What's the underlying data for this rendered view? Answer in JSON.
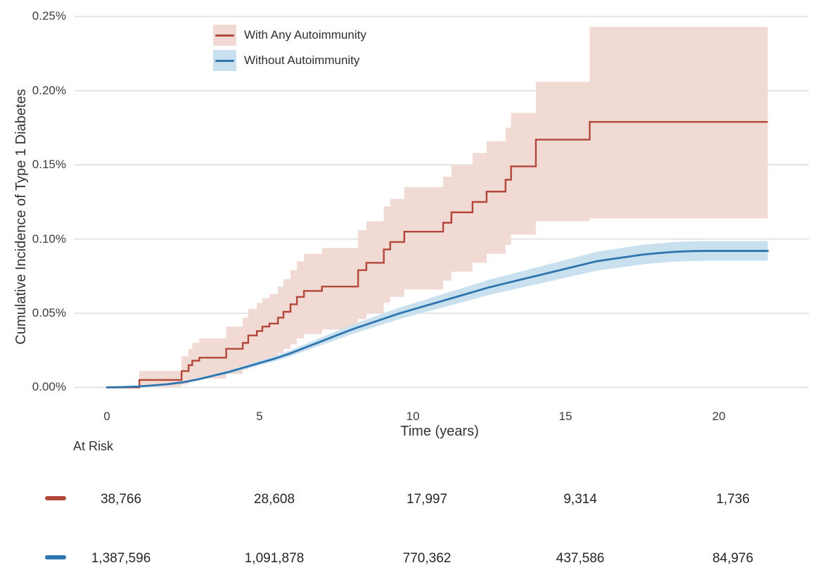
{
  "colors": {
    "red_line": "#b24639",
    "red_band": "#f1d9d4",
    "blue_line": "#2e74ae",
    "blue_band": "#c9e0ef",
    "grid": "#e4e4e4",
    "text": "#3a3a3a"
  },
  "chart_data": {
    "type": "line",
    "subtype": "cumulative-incidence-with-confidence-bands",
    "title": "",
    "xlabel": "Time (years)",
    "ylabel": "Cumulative Incidence of Type 1 Diabetes",
    "xlim": [
      0,
      21.6
    ],
    "ylim_percent": [
      0,
      0.25
    ],
    "grid": "horizontal-only",
    "x_ticks": [
      0,
      5,
      10,
      15,
      20
    ],
    "y_tick_labels": [
      "0.00%",
      "0.05%",
      "0.10%",
      "0.15%",
      "0.20%",
      "0.25%"
    ],
    "y_gridlines_percent": [
      0,
      0.05,
      0.1,
      0.15,
      0.2,
      0.25
    ],
    "legend": {
      "position": "top-left-inside",
      "entries": [
        {
          "label": "With Any Autoimmunity",
          "line_color": "#b24639",
          "band_color": "#f1d9d4"
        },
        {
          "label": "Without Autoimmunity",
          "line_color": "#2e74ae",
          "band_color": "#c9e0ef"
        }
      ]
    },
    "series": [
      {
        "name": "With Any Autoimmunity",
        "style": "step",
        "color": "#b24639",
        "band_color": "#f1d9d4",
        "t": [
          0,
          1.06,
          2.44,
          2.67,
          2.79,
          3.02,
          3.9,
          4.44,
          4.62,
          4.9,
          5.08,
          5.31,
          5.59,
          5.77,
          6.0,
          6.21,
          6.44,
          7.03,
          8.21,
          8.48,
          9.05,
          9.26,
          9.72,
          10.99,
          11.26,
          11.95,
          12.41,
          13.03,
          13.21,
          14.02,
          15.78,
          21.6
        ],
        "v_percent": [
          0,
          0.005,
          0.011,
          0.015,
          0.018,
          0.02,
          0.026,
          0.03,
          0.035,
          0.038,
          0.041,
          0.043,
          0.047,
          0.051,
          0.056,
          0.061,
          0.065,
          0.068,
          0.079,
          0.084,
          0.093,
          0.098,
          0.105,
          0.111,
          0.118,
          0.125,
          0.132,
          0.14,
          0.149,
          0.167,
          0.179,
          0.179
        ],
        "band_t": [
          1.06,
          2.44,
          2.67,
          2.79,
          3.02,
          3.9,
          4.44,
          4.62,
          4.9,
          5.08,
          5.31,
          5.59,
          5.77,
          6.0,
          6.21,
          6.44,
          7.03,
          8.21,
          8.48,
          9.05,
          9.26,
          9.72,
          10.99,
          11.26,
          11.95,
          12.41,
          13.03,
          13.21,
          14.02,
          15.78,
          21.6
        ],
        "upper_percent": [
          0.011,
          0.021,
          0.026,
          0.03,
          0.033,
          0.041,
          0.047,
          0.053,
          0.057,
          0.06,
          0.063,
          0.068,
          0.073,
          0.079,
          0.085,
          0.09,
          0.094,
          0.106,
          0.112,
          0.122,
          0.127,
          0.135,
          0.142,
          0.15,
          0.158,
          0.166,
          0.175,
          0.185,
          0.206,
          0.243,
          0.243
        ],
        "lower_percent": [
          0.0005,
          0.002,
          0.004,
          0.005,
          0.006,
          0.009,
          0.012,
          0.014,
          0.016,
          0.018,
          0.02,
          0.023,
          0.026,
          0.029,
          0.033,
          0.036,
          0.039,
          0.046,
          0.05,
          0.057,
          0.061,
          0.066,
          0.072,
          0.078,
          0.084,
          0.09,
          0.096,
          0.103,
          0.112,
          0.114,
          0.114
        ],
        "final_value_percent": 0.179
      },
      {
        "name": "Without Autoimmunity",
        "style": "line",
        "color": "#2e74ae",
        "band_color": "#c9e0ef",
        "t": [
          0,
          0.5,
          1,
          1.5,
          2,
          2.5,
          3,
          3.5,
          4,
          4.5,
          5,
          5.5,
          6,
          6.5,
          7,
          7.5,
          8,
          8.5,
          9,
          9.5,
          10,
          10.5,
          11,
          11.5,
          12,
          12.5,
          13,
          13.5,
          14,
          14.5,
          15,
          15.5,
          16,
          16.5,
          17,
          17.5,
          18,
          18.5,
          19,
          19.5,
          20,
          20.5,
          21,
          21.6
        ],
        "v_percent": [
          0,
          0.0002,
          0.0006,
          0.0013,
          0.0022,
          0.0035,
          0.0055,
          0.008,
          0.0105,
          0.0135,
          0.0165,
          0.0195,
          0.023,
          0.027,
          0.031,
          0.035,
          0.039,
          0.0425,
          0.046,
          0.0495,
          0.0525,
          0.0555,
          0.0585,
          0.0615,
          0.0645,
          0.0675,
          0.07,
          0.0725,
          0.075,
          0.0775,
          0.08,
          0.0825,
          0.085,
          0.0865,
          0.088,
          0.0895,
          0.0905,
          0.0913,
          0.0918,
          0.092,
          0.092,
          0.092,
          0.092,
          0.092
        ],
        "band_halfwidth_rule": "min(0.0066, 0.0004 + 0.07 * v)",
        "final_value_percent": 0.092
      }
    ],
    "at_risk": {
      "label": "At Risk",
      "times": [
        0,
        5,
        10,
        15,
        20
      ],
      "rows": [
        {
          "name": "With Any Autoimmunity",
          "color": "#b24639",
          "counts": [
            "38,766",
            "28,608",
            "17,997",
            "9,314",
            "1,736"
          ]
        },
        {
          "name": "Without Autoimmunity",
          "color": "#2e74ae",
          "counts": [
            "1,387,596",
            "1,091,878",
            "770,362",
            "437,586",
            "84,976"
          ]
        }
      ]
    }
  }
}
